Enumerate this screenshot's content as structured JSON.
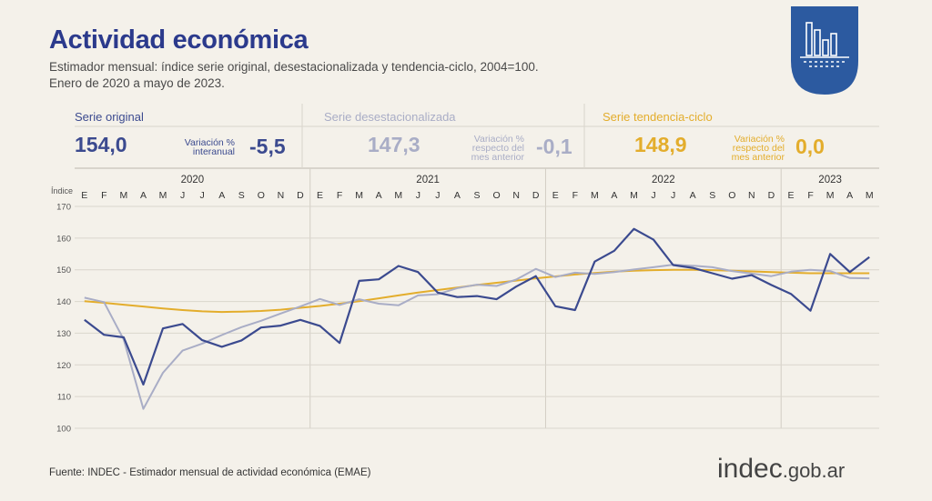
{
  "header": {
    "title": "Actividad económica",
    "subtitle_line1": "Estimador mensual: índice serie original, desestacionalizada y tendencia-ciclo, 2004=100.",
    "subtitle_line2": "Enero de 2020 a mayo de 2023."
  },
  "panels": [
    {
      "label": "Serie original",
      "value": "154,0",
      "var_label_1": "Variación %",
      "var_label_2": "interanual",
      "var_label_3": "",
      "var_value": "-5,5",
      "color": "#3b4a8f"
    },
    {
      "label": "Serie desestacionalizada",
      "value": "147,3",
      "var_label_1": "Variación %",
      "var_label_2": "respecto del",
      "var_label_3": "mes anterior",
      "var_value": "-0,1",
      "color": "#a9adc6"
    },
    {
      "label": "Serie tendencia-ciclo",
      "value": "148,9",
      "var_label_1": "Variación %",
      "var_label_2": "respecto del",
      "var_label_3": "mes anterior",
      "var_value": "0,0",
      "color": "#e3ad2c"
    }
  ],
  "footer": {
    "source": "Fuente: INDEC - Estimador mensual de actividad económica (EMAE)"
  },
  "brand": {
    "name": "indec",
    "domain": ".gob.ar"
  },
  "chart_data": {
    "type": "line",
    "ylabel": "Índice",
    "ylim": [
      100,
      170
    ],
    "yticks": [
      100,
      110,
      120,
      130,
      140,
      150,
      160,
      170
    ],
    "years": [
      {
        "label": "2020",
        "months": 12
      },
      {
        "label": "2021",
        "months": 12
      },
      {
        "label": "2022",
        "months": 12
      },
      {
        "label": "2023",
        "months": 5
      }
    ],
    "month_labels": [
      "E",
      "F",
      "M",
      "A",
      "M",
      "J",
      "J",
      "A",
      "S",
      "O",
      "N",
      "D",
      "E",
      "F",
      "M",
      "A",
      "M",
      "J",
      "J",
      "A",
      "S",
      "O",
      "N",
      "D",
      "E",
      "F",
      "M",
      "A",
      "M",
      "J",
      "J",
      "A",
      "S",
      "O",
      "N",
      "D",
      "E",
      "F",
      "M",
      "A",
      "M"
    ],
    "series": [
      {
        "name": "Serie original",
        "color": "#3b4a8f",
        "values": [
          134.2,
          129.5,
          128.7,
          113.8,
          131.5,
          132.9,
          127.8,
          125.7,
          127.7,
          131.8,
          132.4,
          134.2,
          132.3,
          126.9,
          146.5,
          147.0,
          151.2,
          149.3,
          142.8,
          141.4,
          141.7,
          140.7,
          144.7,
          148.0,
          138.5,
          137.3,
          152.6,
          156.0,
          162.9,
          159.5,
          151.5,
          150.6,
          148.9,
          147.2,
          148.3,
          145.2,
          142.4,
          137.1,
          155.0,
          149.3,
          154.0
        ]
      },
      {
        "name": "Serie desestacionalizada",
        "color": "#a9adc6",
        "values": [
          141.2,
          139.8,
          128.0,
          106.1,
          117.5,
          124.5,
          126.7,
          129.4,
          131.9,
          133.9,
          136.2,
          138.4,
          140.8,
          138.9,
          140.7,
          139.3,
          138.8,
          141.9,
          142.3,
          144.2,
          145.3,
          144.9,
          146.9,
          150.3,
          147.7,
          149.1,
          148.7,
          149.3,
          150.1,
          150.8,
          151.6,
          151.3,
          150.8,
          149.6,
          148.8,
          148.0,
          149.4,
          150.0,
          149.6,
          147.4,
          147.3
        ]
      },
      {
        "name": "Serie tendencia-ciclo",
        "color": "#e3ad2c",
        "values": [
          140.1,
          139.6,
          139.0,
          138.4,
          137.8,
          137.3,
          136.9,
          136.7,
          136.8,
          137.0,
          137.4,
          138.0,
          138.6,
          139.3,
          140.1,
          141.0,
          141.9,
          142.8,
          143.6,
          144.4,
          145.2,
          145.9,
          146.6,
          147.3,
          147.9,
          148.5,
          149.0,
          149.4,
          149.7,
          149.9,
          150.0,
          150.0,
          149.9,
          149.7,
          149.5,
          149.3,
          149.1,
          148.9,
          148.9,
          148.9,
          148.9
        ]
      }
    ]
  }
}
